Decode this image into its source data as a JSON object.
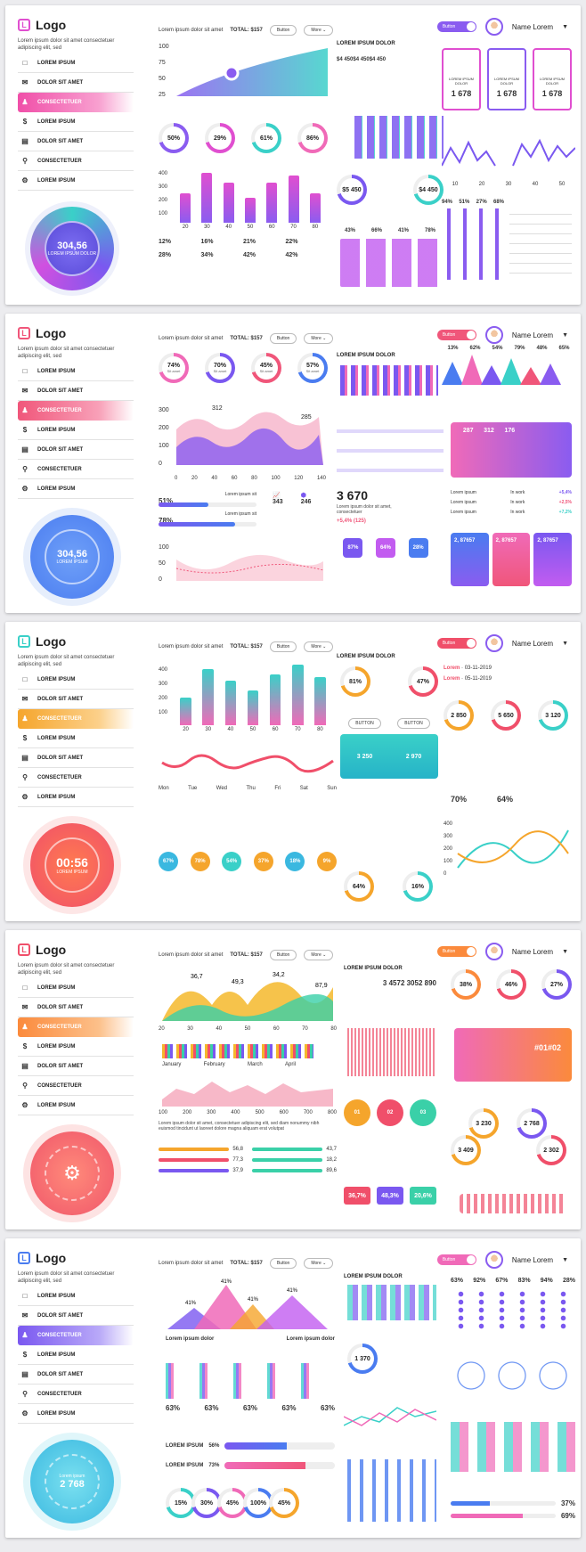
{
  "common": {
    "logo": "Logo",
    "logo_sub": "Lorem ipsum dolor sit amet consectetuer adipiscing elit, sed",
    "header_text": "Lorem ipsum dolor sit amet",
    "total_label": "TOTAL:",
    "total_value": "$157",
    "button": "Button",
    "more": "More",
    "user_name": "Name Lorem",
    "section_title": "LOREM IPSUM DOLOR",
    "menu": [
      "LOREM IPSUM",
      "DOLOR SIT AMET",
      "CONSECTETUER",
      "LOREM IPSUM",
      "DOLOR SIT AMET",
      "CONSECTETUER",
      "LOREM IPSUM"
    ],
    "menu_icons": [
      "□",
      "✉",
      "♟",
      "$",
      "▤",
      "⚲",
      "⚙"
    ]
  },
  "colors": {
    "p1": "#e04fd0",
    "p2": "#f0567a",
    "p3": "#f59a2c",
    "p4": "#fb8a3c",
    "p5": "#7a58f0",
    "teal": "#3ad0c8",
    "purple": "#7d4ef0",
    "pink": "#f06ab8",
    "orange": "#ff8a30"
  },
  "p1": {
    "area_y_ticks": [
      "100",
      "75",
      "50",
      "25"
    ],
    "donuts": [
      "50%",
      "29%",
      "61%",
      "86%"
    ],
    "bar_y_ticks": [
      "400",
      "300",
      "200",
      "100"
    ],
    "bar_x": [
      "20",
      "30",
      "40",
      "50",
      "60",
      "70",
      "80"
    ],
    "bar_values": [
      210,
      360,
      290,
      180,
      290,
      340,
      210
    ],
    "pct_rows": [
      "12%",
      "16%",
      "21%",
      "22%",
      "28%",
      "34%",
      "42%",
      "42%"
    ],
    "money": [
      "$4 450",
      "$4 450",
      "$4 450"
    ],
    "ring_values": [
      "$5 450",
      "$4 450"
    ],
    "pct_small": [
      "43%",
      "66%",
      "41%",
      "78%"
    ],
    "kpis": [
      "1 678",
      "1 678",
      "1 678"
    ],
    "kpi_label": "LOREM IPSUM DOLOR",
    "slider_pcts": [
      "94%",
      "51%",
      "27%",
      "68%"
    ],
    "gauge_value": "304,56",
    "gauge_label": "LOREM IPSUM DOLOR",
    "wave_x": [
      "10",
      "20",
      "30",
      "40",
      "50"
    ]
  },
  "p2": {
    "rings": [
      {
        "v": "74%",
        "l": "Sit amet"
      },
      {
        "v": "70%",
        "l": "Sit amet"
      },
      {
        "v": "45%",
        "l": "Sit amet"
      },
      {
        "v": "57%",
        "l": "Sit amet"
      }
    ],
    "area_y": [
      "300",
      "200",
      "100",
      "0"
    ],
    "area_x": [
      "0",
      "20",
      "40",
      "60",
      "80",
      "100",
      "120",
      "140"
    ],
    "peak1": "312",
    "peak2": "285",
    "progress": [
      {
        "v": "51%",
        "l": "Lorem ipsum sit"
      },
      {
        "v": "78%",
        "l": "Lorem ipsum sit"
      }
    ],
    "stat1": "343",
    "stat2": "246",
    "wave_y": [
      "100",
      "50",
      "0"
    ],
    "big_number": "3 670",
    "big_sub": "Lorem ipsum dolor sit amet, consectetuer",
    "big_change": "+5,4% (125)",
    "pins": [
      "87%",
      "64%",
      "28%"
    ],
    "cones": [
      "13%",
      "62%",
      "54%",
      "79%",
      "48%",
      "65%"
    ],
    "bar_card": [
      "287",
      "312",
      "176"
    ],
    "legend": [
      {
        "l": "Lorem ipsum",
        "s": "In work",
        "v": "+5,4%"
      },
      {
        "l": "Lorem ipsum",
        "s": "In work",
        "v": "+2,5%"
      },
      {
        "l": "Lorem ipsum",
        "s": "In work",
        "v": "+7,2%"
      }
    ],
    "bottom_cards": [
      "2, 87657",
      "2, 87657",
      "2, 87657"
    ],
    "gauge_value": "304,56",
    "gauge_label": "LOREM IPSUM"
  },
  "p3": {
    "bar_y": [
      "400",
      "300",
      "200",
      "100"
    ],
    "bar_x": [
      "20",
      "30",
      "40",
      "50",
      "60",
      "70",
      "80"
    ],
    "bars": [
      190,
      390,
      310,
      240,
      350,
      420,
      330
    ],
    "days": [
      "Mon",
      "Tue",
      "Wed",
      "Thu",
      "Fri",
      "Sat",
      "Sun"
    ],
    "bubbles": [
      "67%",
      "78%",
      "54%",
      "37%",
      "18%",
      "9%"
    ],
    "rings": [
      "81%",
      "47%"
    ],
    "button": "BUTTON",
    "dates": [
      "03-11-2019",
      "05-11-2019"
    ],
    "lorem": "Lorem",
    "ring_values": [
      "2 850",
      "5 650",
      "3 120"
    ],
    "pcts": [
      "70%",
      "64%"
    ],
    "line_y": [
      "400",
      "300",
      "200",
      "100",
      "0"
    ],
    "tile_values": [
      "3 250",
      "2 970"
    ],
    "pies": [
      "64%",
      "16%"
    ],
    "timer": "00:56",
    "timer_label": "LOREM IPSUM"
  },
  "p4": {
    "peaks": [
      "36,7",
      "49,3",
      "34,2",
      "87,9"
    ],
    "x": [
      "20",
      "30",
      "40",
      "50",
      "60",
      "70",
      "80"
    ],
    "months": [
      "January",
      "February",
      "March",
      "April"
    ],
    "area_x": [
      "100",
      "200",
      "300",
      "400",
      "500",
      "600",
      "700",
      "800"
    ],
    "paragraph": "Lorem ipsum dolor sit amet, consectetuer adipiscing elit, sed diam nonummy nibh euismod tincidunt ut laoreet dolore magna aliquam erat volutpat",
    "progress_left": [
      "56,8",
      "77,3",
      "37,9"
    ],
    "progress_right": [
      "43,7",
      "18,2",
      "89,6"
    ],
    "stats": [
      "3 457",
      "2 305",
      "2 890"
    ],
    "numbers": [
      "01",
      "02",
      "03"
    ],
    "pcts": [
      "36,7%",
      "48,3%",
      "20,6%"
    ],
    "rings": [
      "38%",
      "46%",
      "27%"
    ],
    "tags": [
      "#01",
      "#02"
    ],
    "circles": [
      "3 230",
      "2 768",
      "3 409",
      "2 302"
    ],
    "line_y": [
      "50%",
      "40%",
      "30%",
      "20%",
      "10%"
    ]
  },
  "p5": {
    "peaks": [
      "41%",
      "41%",
      "41%",
      "41%"
    ],
    "legend": [
      "Lorem ipsum dolor",
      "Lorem ipsum dolor"
    ],
    "bar_pcts": [
      "63%",
      "63%",
      "63%",
      "63%",
      "63%"
    ],
    "progress": [
      {
        "l": "LOREM IPSUM",
        "v": "56%"
      },
      {
        "l": "LOREM IPSUM",
        "v": "73%"
      }
    ],
    "mini_rings": [
      "15%",
      "30%",
      "45%",
      "100%",
      "45%"
    ],
    "center_value": "1 370",
    "dot_pcts": [
      "63%",
      "92%",
      "67%",
      "83%",
      "94%",
      "28%"
    ],
    "bottom_pcts": [
      "37%",
      "69%"
    ],
    "gauge_value": "2 768",
    "gauge_label": "Lorem ipsum"
  }
}
